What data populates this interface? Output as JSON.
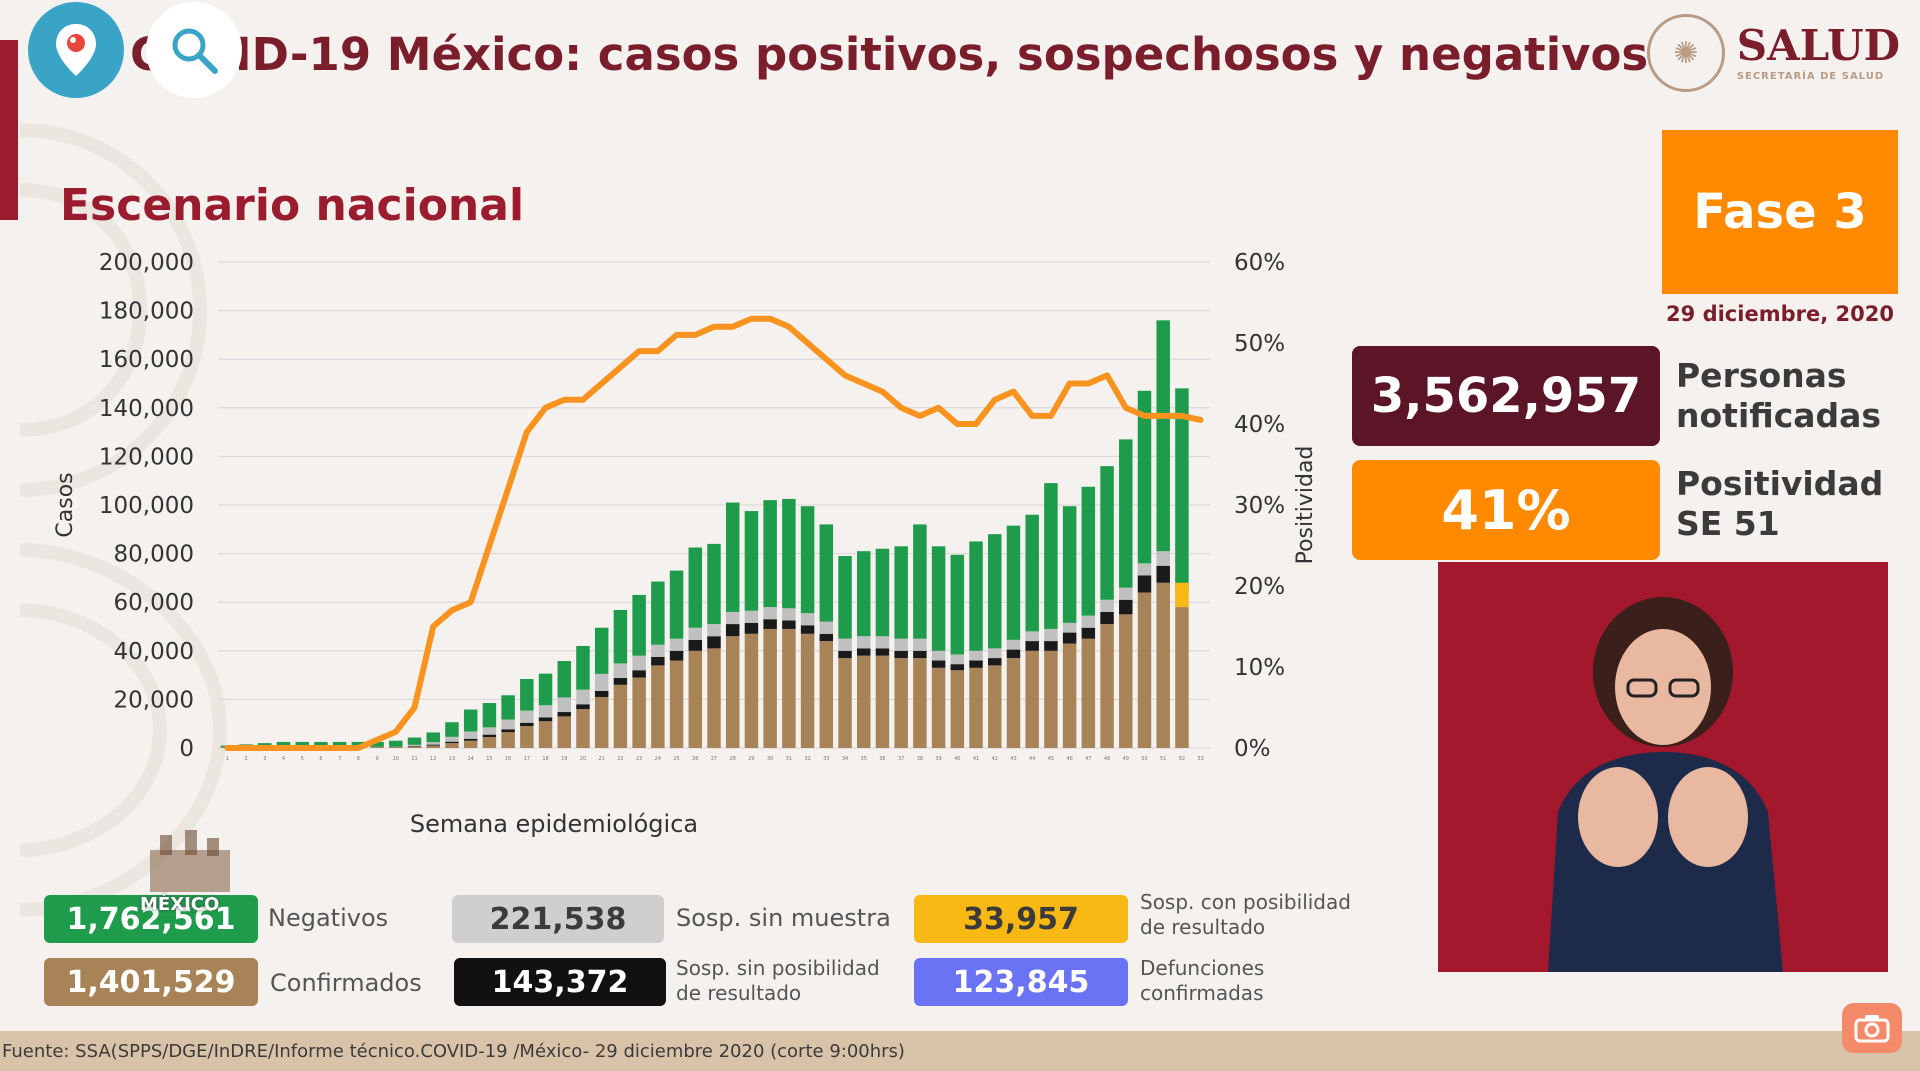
{
  "header": {
    "title": "COVID-19 México: casos positivos, sospechosos y negativos",
    "logo_main": "SALUD",
    "logo_sub": "SECRETARÍA DE SALUD"
  },
  "subtitle": "Escenario nacional",
  "fase": "Fase 3",
  "date": "29 diciembre, 2020",
  "stats": {
    "personas_value": "3,562,957",
    "personas_label_1": "Personas",
    "personas_label_2": "notificadas",
    "positividad_value": "41%",
    "positividad_label_1": "Positividad",
    "positividad_label_2": "SE 51"
  },
  "legend": {
    "negativos_value": "1,762,561",
    "negativos_label": "Negativos",
    "confirmados_value": "1,401,529",
    "confirmados_label": "Confirmados",
    "sosp_sin_muestra_value": "221,538",
    "sosp_sin_muestra_label": "Sosp. sin muestra",
    "sosp_sin_posibilidad_value": "143,372",
    "sosp_sin_posibilidad_label_1": "Sosp. sin posibilidad",
    "sosp_sin_posibilidad_label_2": "de resultado",
    "sosp_con_posibilidad_value": "33,957",
    "sosp_con_posibilidad_label_1": "Sosp. con posibilidad",
    "sosp_con_posibilidad_label_2": "de resultado",
    "defunciones_value": "123,845",
    "defunciones_label_1": "Defunciones",
    "defunciones_label_2": "confirmadas"
  },
  "emblem_text": "MÉXICO",
  "footer": "Fuente: SSA(SPPS/DGE/InDRE/Informe técnico.COVID-19 /México- 29 diciembre 2020 (corte 9:00hrs)",
  "colors": {
    "confirmados": "#a98358",
    "sin_posibilidad": "#1a1a1a",
    "sin_muestra": "#c0c0c0",
    "negativos": "#1e9b4b",
    "con_posibilidad": "#f9b914",
    "positividad": "#f7931e",
    "accent": "#9b1c2e",
    "fase": "#ff8a00",
    "personas_box": "#5c1427",
    "defunciones": "#6b73f5"
  },
  "chart_data": {
    "type": "bar",
    "stacked": true,
    "xlabel": "Semana epidemiológica",
    "ylabel": "Casos",
    "y2label": "Positividad",
    "ylim": [
      0,
      200000
    ],
    "y2lim": [
      0,
      60
    ],
    "yticks": [
      "0",
      "20,000",
      "40,000",
      "60,000",
      "80,000",
      "100,000",
      "120,000",
      "140,000",
      "160,000",
      "180,000",
      "200,000"
    ],
    "y2ticks": [
      "0%",
      "10%",
      "20%",
      "30%",
      "40%",
      "50%",
      "60%"
    ],
    "grid": true,
    "categories": [
      "1",
      "2",
      "3",
      "4",
      "5",
      "6",
      "7",
      "8",
      "9",
      "10",
      "11",
      "12",
      "13",
      "14",
      "15",
      "16",
      "17",
      "18",
      "19",
      "20",
      "21",
      "22",
      "23",
      "24",
      "25",
      "26",
      "27",
      "28",
      "29",
      "30",
      "31",
      "32",
      "33",
      "34",
      "35",
      "36",
      "37",
      "38",
      "39",
      "40",
      "41",
      "42",
      "43",
      "44",
      "45",
      "46",
      "47",
      "48",
      "49",
      "50",
      "51",
      "52",
      "53"
    ],
    "series": [
      {
        "values": [
          500,
          500,
          500,
          500,
          500,
          500,
          500,
          500,
          500,
          500,
          600,
          1000,
          2000,
          3000,
          4500,
          6500,
          9000,
          11000,
          13000,
          16000,
          21000,
          26000,
          29000,
          34000,
          36000,
          40000,
          41000,
          46000,
          47000,
          49000,
          49000,
          47000,
          44000,
          37000,
          38000,
          38000,
          37000,
          37000,
          33000,
          32000,
          33000,
          34000,
          37000,
          40000,
          40000,
          43000,
          45000,
          51000,
          55000,
          64000,
          68000,
          58000,
          0
        ]
      },
      {
        "values": [
          0,
          0,
          0,
          0,
          0,
          0,
          0,
          0,
          0,
          0,
          200,
          400,
          600,
          800,
          1000,
          1200,
          1400,
          1600,
          1800,
          2000,
          2500,
          2800,
          3000,
          3500,
          4000,
          4500,
          5000,
          5000,
          4500,
          4000,
          3500,
          3500,
          3000,
          3000,
          3000,
          3000,
          3000,
          3000,
          3000,
          2500,
          3000,
          3000,
          3500,
          4000,
          4000,
          4500,
          4500,
          5000,
          6000,
          7000,
          7000,
          0,
          0
        ]
      },
      {
        "values": [
          0,
          0,
          0,
          0,
          0,
          0,
          0,
          0,
          0,
          0,
          500,
          1000,
          2000,
          3000,
          3000,
          4000,
          5000,
          5000,
          6000,
          6000,
          7000,
          6000,
          6000,
          5000,
          5000,
          5000,
          5000,
          5000,
          5000,
          5000,
          5000,
          5000,
          5000,
          5000,
          5000,
          5000,
          5000,
          5000,
          4000,
          4000,
          4000,
          4000,
          4000,
          4000,
          5000,
          4000,
          5000,
          5000,
          5000,
          5000,
          6000,
          6000,
          0
        ]
      },
      {
        "values": [
          500,
          1000,
          1500,
          2000,
          2000,
          2000,
          2000,
          2000,
          2000,
          2500,
          3000,
          4000,
          6000,
          9000,
          10000,
          10000,
          13000,
          13000,
          15000,
          18000,
          19000,
          22000,
          25000,
          26000,
          28000,
          33000,
          33000,
          45000,
          41000,
          44000,
          45000,
          44000,
          40000,
          34000,
          35000,
          36000,
          38000,
          47000,
          43000,
          41000,
          45000,
          47000,
          47000,
          48000,
          60000,
          48000,
          53000,
          55000,
          61000,
          71000,
          95000,
          84000,
          0
        ]
      },
      {
        "values": [
          0,
          0,
          0,
          0,
          0,
          0,
          0,
          0,
          0,
          0,
          0,
          0,
          0,
          0,
          0,
          0,
          0,
          0,
          0,
          0,
          0,
          0,
          0,
          0,
          0,
          0,
          0,
          0,
          0,
          0,
          0,
          0,
          0,
          0,
          0,
          0,
          0,
          0,
          0,
          0,
          0,
          0,
          0,
          0,
          0,
          0,
          0,
          0,
          0,
          0,
          0,
          10000,
          0
        ]
      }
    ],
    "line": [
      0,
      0,
      0,
      0,
      0,
      0,
      0,
      0,
      1,
      2,
      5,
      15,
      17,
      18,
      25,
      32,
      39,
      42,
      43,
      43,
      45,
      47,
      49,
      49,
      51,
      51,
      52,
      52,
      53,
      53,
      52,
      50,
      48,
      46,
      45,
      44,
      42,
      41,
      42,
      40,
      40,
      43,
      44,
      41,
      41,
      45,
      45,
      46,
      42,
      41,
      41,
      41,
      40.5
    ]
  }
}
